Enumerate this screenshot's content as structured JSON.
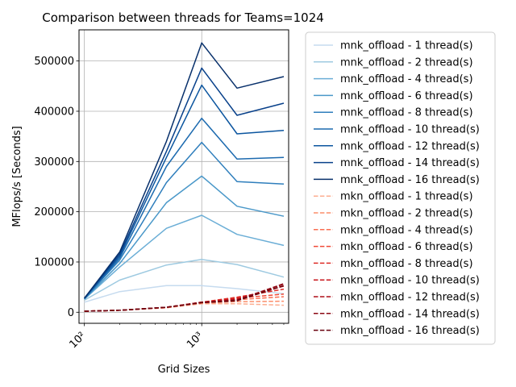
{
  "chart_data": {
    "type": "line",
    "title": "Comparison between threads for Teams=1024",
    "xlabel": "Grid Sizes",
    "ylabel": "MFlops/s [Seconds]",
    "x_scale": "log",
    "x": [
      100,
      200,
      500,
      1000,
      2000,
      5000
    ],
    "xlim": [
      90,
      5500
    ],
    "ylim": [
      -22000,
      562000
    ],
    "x_ticks": [
      100,
      1000
    ],
    "x_tick_labels": [
      "10²",
      "10³"
    ],
    "y_ticks": [
      0,
      100000,
      200000,
      300000,
      400000,
      500000
    ],
    "y_tick_labels": [
      "0",
      "100000",
      "200000",
      "300000",
      "400000",
      "500000"
    ],
    "grid": true,
    "legend_position": "outside-right",
    "series": [
      {
        "name": "mnk_offload - 1 thread(s)",
        "color": "#c6dbef",
        "dash": "solid",
        "values": [
          20000,
          41000,
          53000,
          53000,
          47000,
          37000
        ]
      },
      {
        "name": "mnk_offload - 2 thread(s)",
        "color": "#9ecae1",
        "dash": "solid",
        "values": [
          24000,
          64000,
          94000,
          105000,
          95000,
          70000
        ]
      },
      {
        "name": "mnk_offload - 4 thread(s)",
        "color": "#6baed6",
        "dash": "solid",
        "values": [
          26000,
          90000,
          167000,
          193000,
          155000,
          133000
        ]
      },
      {
        "name": "mnk_offload - 6 thread(s)",
        "color": "#4a98c9",
        "dash": "solid",
        "values": [
          26000,
          97000,
          218000,
          271000,
          211000,
          191000
        ]
      },
      {
        "name": "mnk_offload - 8 thread(s)",
        "color": "#2e7ebc",
        "dash": "solid",
        "values": [
          27000,
          104000,
          258000,
          338000,
          260000,
          255000
        ]
      },
      {
        "name": "mnk_offload - 10 thread(s)",
        "color": "#1c6aaf",
        "dash": "solid",
        "values": [
          27000,
          108000,
          290000,
          386000,
          305000,
          308000
        ]
      },
      {
        "name": "mnk_offload - 12 thread(s)",
        "color": "#0b559f",
        "dash": "solid",
        "values": [
          28000,
          112000,
          308000,
          452000,
          355000,
          362000
        ]
      },
      {
        "name": "mnk_offload - 14 thread(s)",
        "color": "#08408a",
        "dash": "solid",
        "values": [
          28000,
          116000,
          320000,
          486000,
          392000,
          416000
        ]
      },
      {
        "name": "mnk_offload - 16 thread(s)",
        "color": "#08306b",
        "dash": "solid",
        "values": [
          28000,
          120000,
          340000,
          536000,
          446000,
          469000
        ]
      },
      {
        "name": "mkn_offload - 1 thread(s)",
        "color": "#fcae91",
        "dash": "dashed",
        "values": [
          2000,
          4000,
          9000,
          17000,
          17000,
          14000
        ]
      },
      {
        "name": "mkn_offload - 2 thread(s)",
        "color": "#fc8d6a",
        "dash": "dashed",
        "values": [
          2000,
          4000,
          9000,
          18000,
          21000,
          22000
        ]
      },
      {
        "name": "mkn_offload - 4 thread(s)",
        "color": "#f96e51",
        "dash": "dashed",
        "values": [
          2000,
          4000,
          10000,
          19000,
          25000,
          31000
        ]
      },
      {
        "name": "mkn_offload - 6 thread(s)",
        "color": "#f04a37",
        "dash": "dashed",
        "values": [
          2000,
          4000,
          10000,
          20000,
          28000,
          36000
        ]
      },
      {
        "name": "mkn_offload - 8 thread(s)",
        "color": "#de2b26",
        "dash": "dashed",
        "values": [
          2000,
          4000,
          10000,
          20000,
          30000,
          46000
        ]
      },
      {
        "name": "mkn_offload - 10 thread(s)",
        "color": "#c8171c",
        "dash": "dashed",
        "values": [
          2000,
          4000,
          10000,
          20000,
          27000,
          52000
        ]
      },
      {
        "name": "mkn_offload - 12 thread(s)",
        "color": "#ad0f18",
        "dash": "dashed",
        "values": [
          2000,
          4000,
          10000,
          20000,
          25000,
          56000
        ]
      },
      {
        "name": "mkn_offload - 14 thread(s)",
        "color": "#8b0713",
        "dash": "dashed",
        "values": [
          2000,
          4000,
          10000,
          19000,
          24000,
          57000
        ]
      },
      {
        "name": "mkn_offload - 16 thread(s)",
        "color": "#67000d",
        "dash": "dashed",
        "values": [
          2000,
          4000,
          10000,
          19000,
          23000,
          53000
        ]
      }
    ]
  }
}
